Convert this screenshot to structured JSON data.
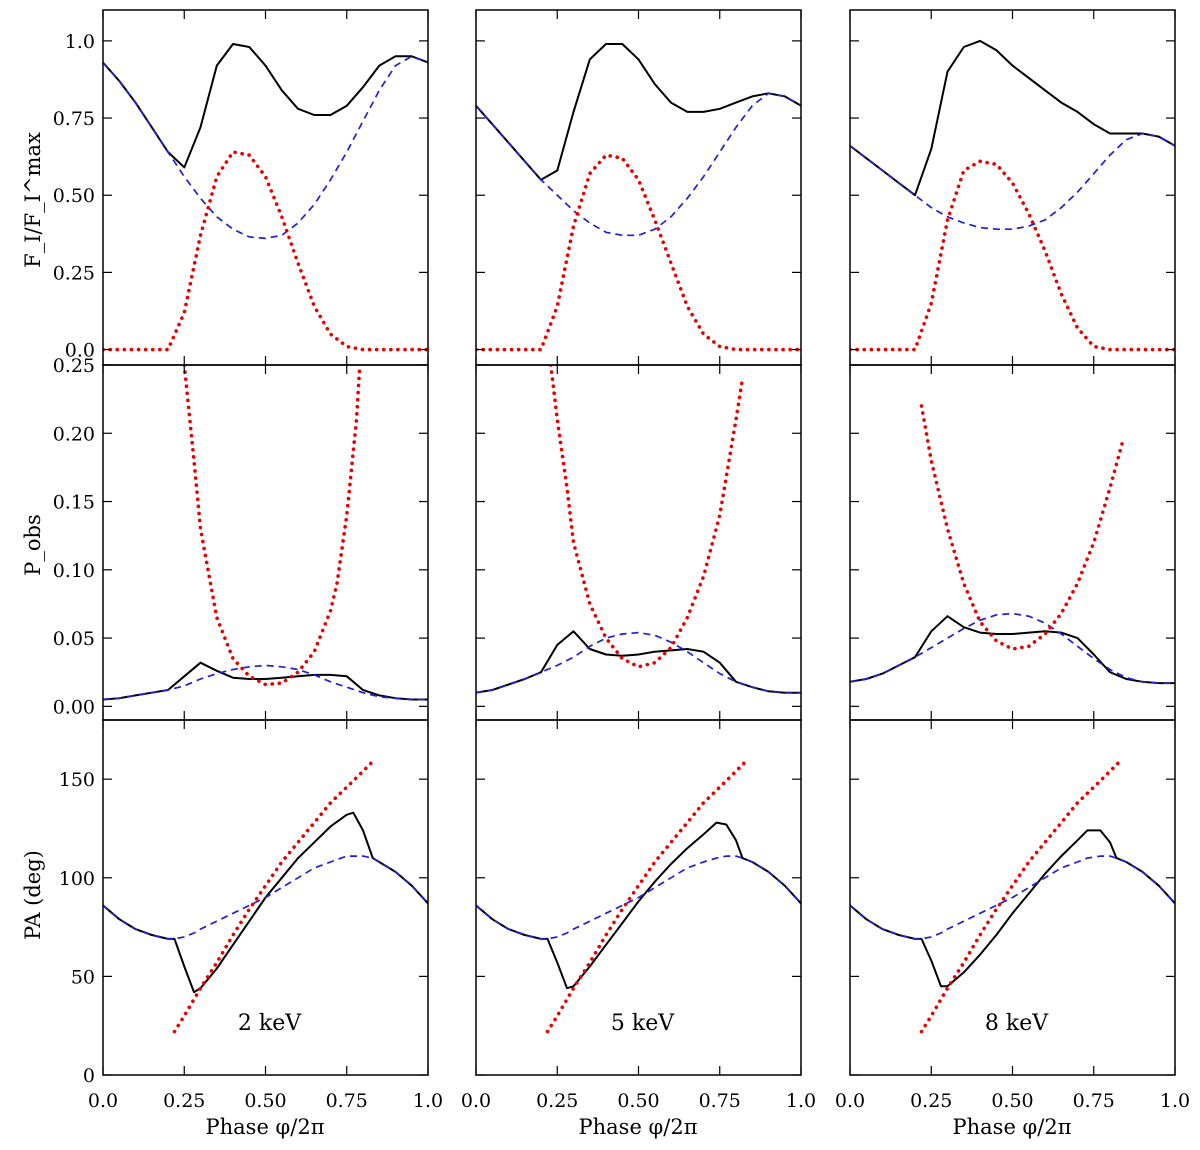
{
  "figure": {
    "x_axis_label": "Phase φ/2π",
    "row_labels": {
      "flux": "F_I/F_I^max",
      "pol": "P_obs",
      "pa": "PA (deg)"
    },
    "x_tick_labels": [
      "0.0",
      "0.25",
      "0.50",
      "0.75",
      "1.0"
    ]
  },
  "colors": {
    "total": "#000000",
    "dashed": "#1f1fd6",
    "dotted": "#e60000"
  },
  "chart_data": [
    {
      "type": "line",
      "panel": "flux-2keV",
      "xlim": [
        0,
        1
      ],
      "ylim": [
        -0.05,
        1.1
      ],
      "yticks": [
        "0.0",
        "0.25",
        "0.50",
        "0.75",
        "1.0"
      ],
      "x": [
        0.0,
        0.05,
        0.1,
        0.15,
        0.2,
        0.25,
        0.3,
        0.35,
        0.4,
        0.45,
        0.5,
        0.55,
        0.6,
        0.65,
        0.7,
        0.75,
        0.8,
        0.85,
        0.9,
        0.95,
        1.0
      ],
      "series": [
        {
          "style": "solid",
          "values": [
            0.93,
            0.87,
            0.8,
            0.72,
            0.64,
            0.59,
            0.72,
            0.92,
            0.99,
            0.98,
            0.92,
            0.84,
            0.78,
            0.76,
            0.76,
            0.79,
            0.85,
            0.92,
            0.95,
            0.95,
            0.93
          ]
        },
        {
          "style": "dashed",
          "values": [
            0.93,
            0.87,
            0.8,
            0.72,
            0.64,
            0.56,
            0.49,
            0.43,
            0.39,
            0.365,
            0.36,
            0.37,
            0.41,
            0.47,
            0.55,
            0.64,
            0.74,
            0.84,
            0.92,
            0.95,
            0.93
          ]
        },
        {
          "style": "dotted",
          "values": [
            0.0,
            0.0,
            0.0,
            0.0,
            0.0,
            0.12,
            0.37,
            0.56,
            0.64,
            0.63,
            0.56,
            0.43,
            0.28,
            0.14,
            0.05,
            0.01,
            0.0,
            0.0,
            0.0,
            0.0,
            0.0
          ]
        }
      ]
    },
    {
      "type": "line",
      "panel": "flux-5keV",
      "xlim": [
        0,
        1
      ],
      "ylim": [
        -0.05,
        1.1
      ],
      "x": [
        0.0,
        0.05,
        0.1,
        0.15,
        0.2,
        0.25,
        0.3,
        0.35,
        0.4,
        0.45,
        0.5,
        0.55,
        0.6,
        0.65,
        0.7,
        0.75,
        0.8,
        0.85,
        0.9,
        0.95,
        1.0
      ],
      "series": [
        {
          "style": "solid",
          "values": [
            0.79,
            0.73,
            0.67,
            0.61,
            0.55,
            0.58,
            0.77,
            0.94,
            0.99,
            0.99,
            0.94,
            0.86,
            0.8,
            0.77,
            0.77,
            0.78,
            0.8,
            0.82,
            0.83,
            0.82,
            0.79
          ]
        },
        {
          "style": "dashed",
          "values": [
            0.79,
            0.73,
            0.67,
            0.61,
            0.55,
            0.5,
            0.45,
            0.41,
            0.38,
            0.37,
            0.37,
            0.39,
            0.43,
            0.49,
            0.56,
            0.64,
            0.72,
            0.79,
            0.83,
            0.82,
            0.79
          ]
        },
        {
          "style": "dotted",
          "values": [
            0.0,
            0.0,
            0.0,
            0.0,
            0.0,
            0.14,
            0.4,
            0.57,
            0.63,
            0.62,
            0.55,
            0.42,
            0.28,
            0.14,
            0.05,
            0.01,
            0.0,
            0.0,
            0.0,
            0.0,
            0.0
          ]
        }
      ]
    },
    {
      "type": "line",
      "panel": "flux-8keV",
      "xlim": [
        0,
        1
      ],
      "ylim": [
        -0.05,
        1.1
      ],
      "x": [
        0.0,
        0.05,
        0.1,
        0.15,
        0.2,
        0.25,
        0.3,
        0.35,
        0.4,
        0.45,
        0.5,
        0.55,
        0.6,
        0.65,
        0.7,
        0.75,
        0.8,
        0.85,
        0.9,
        0.95,
        1.0
      ],
      "series": [
        {
          "style": "solid",
          "values": [
            0.66,
            0.62,
            0.58,
            0.54,
            0.5,
            0.65,
            0.9,
            0.98,
            1.0,
            0.97,
            0.92,
            0.88,
            0.84,
            0.8,
            0.77,
            0.73,
            0.7,
            0.7,
            0.7,
            0.69,
            0.66
          ]
        },
        {
          "style": "dashed",
          "values": [
            0.66,
            0.62,
            0.58,
            0.54,
            0.5,
            0.46,
            0.43,
            0.41,
            0.395,
            0.39,
            0.39,
            0.4,
            0.42,
            0.46,
            0.51,
            0.57,
            0.63,
            0.68,
            0.7,
            0.69,
            0.66
          ]
        },
        {
          "style": "dotted",
          "values": [
            0.0,
            0.0,
            0.0,
            0.0,
            0.0,
            0.15,
            0.42,
            0.58,
            0.61,
            0.6,
            0.54,
            0.44,
            0.32,
            0.18,
            0.07,
            0.01,
            0.0,
            0.0,
            0.0,
            0.0,
            0.0
          ]
        }
      ]
    },
    {
      "type": "line",
      "panel": "pol-2keV",
      "xlim": [
        0,
        1
      ],
      "ylim": [
        -0.01,
        0.25
      ],
      "yticks": [
        "0.00",
        "0.05",
        "0.10",
        "0.15",
        "0.20",
        "0.25"
      ],
      "x": [
        0.0,
        0.05,
        0.1,
        0.15,
        0.2,
        0.25,
        0.3,
        0.35,
        0.4,
        0.45,
        0.5,
        0.55,
        0.6,
        0.65,
        0.7,
        0.75,
        0.8,
        0.85,
        0.9,
        0.95,
        1.0
      ],
      "series": [
        {
          "style": "solid",
          "values": [
            0.005,
            0.006,
            0.008,
            0.01,
            0.012,
            0.022,
            0.032,
            0.026,
            0.021,
            0.02,
            0.02,
            0.021,
            0.022,
            0.023,
            0.023,
            0.022,
            0.012,
            0.008,
            0.006,
            0.005,
            0.005
          ]
        },
        {
          "style": "dashed",
          "values": [
            0.005,
            0.006,
            0.008,
            0.01,
            0.012,
            0.015,
            0.02,
            0.024,
            0.027,
            0.029,
            0.03,
            0.029,
            0.027,
            0.023,
            0.018,
            0.014,
            0.01,
            0.007,
            0.006,
            0.005,
            0.005
          ]
        },
        {
          "style": "dotted",
          "x": [
            0.25,
            0.28,
            0.3,
            0.35,
            0.4,
            0.45,
            0.5,
            0.55,
            0.6,
            0.65,
            0.7,
            0.72,
            0.75,
            0.78,
            0.79
          ],
          "values": [
            0.25,
            0.18,
            0.13,
            0.065,
            0.035,
            0.022,
            0.016,
            0.017,
            0.025,
            0.04,
            0.07,
            0.09,
            0.14,
            0.21,
            0.25
          ]
        }
      ]
    },
    {
      "type": "line",
      "panel": "pol-5keV",
      "xlim": [
        0,
        1
      ],
      "ylim": [
        -0.01,
        0.25
      ],
      "x": [
        0.0,
        0.05,
        0.1,
        0.15,
        0.2,
        0.25,
        0.3,
        0.35,
        0.4,
        0.45,
        0.5,
        0.55,
        0.6,
        0.65,
        0.7,
        0.75,
        0.8,
        0.85,
        0.9,
        0.95,
        1.0
      ],
      "series": [
        {
          "style": "solid",
          "values": [
            0.01,
            0.012,
            0.016,
            0.02,
            0.025,
            0.045,
            0.055,
            0.042,
            0.038,
            0.037,
            0.038,
            0.04,
            0.041,
            0.042,
            0.04,
            0.032,
            0.018,
            0.014,
            0.011,
            0.01,
            0.01
          ]
        },
        {
          "style": "dashed",
          "values": [
            0.01,
            0.012,
            0.016,
            0.02,
            0.025,
            0.03,
            0.036,
            0.044,
            0.05,
            0.053,
            0.054,
            0.052,
            0.047,
            0.04,
            0.032,
            0.024,
            0.018,
            0.014,
            0.011,
            0.01,
            0.01
          ]
        },
        {
          "style": "dotted",
          "x": [
            0.23,
            0.25,
            0.28,
            0.3,
            0.35,
            0.4,
            0.45,
            0.5,
            0.55,
            0.6,
            0.65,
            0.7,
            0.75,
            0.8,
            0.82
          ],
          "values": [
            0.25,
            0.21,
            0.16,
            0.12,
            0.075,
            0.05,
            0.035,
            0.029,
            0.032,
            0.043,
            0.065,
            0.095,
            0.14,
            0.21,
            0.24
          ]
        }
      ]
    },
    {
      "type": "line",
      "panel": "pol-8keV",
      "xlim": [
        0,
        1
      ],
      "ylim": [
        -0.01,
        0.25
      ],
      "x": [
        0.0,
        0.05,
        0.1,
        0.15,
        0.2,
        0.25,
        0.3,
        0.35,
        0.4,
        0.45,
        0.5,
        0.55,
        0.6,
        0.65,
        0.7,
        0.75,
        0.8,
        0.85,
        0.9,
        0.95,
        1.0
      ],
      "series": [
        {
          "style": "solid",
          "values": [
            0.018,
            0.02,
            0.024,
            0.03,
            0.036,
            0.055,
            0.066,
            0.058,
            0.054,
            0.053,
            0.053,
            0.054,
            0.055,
            0.054,
            0.05,
            0.038,
            0.025,
            0.02,
            0.018,
            0.017,
            0.017
          ]
        },
        {
          "style": "dashed",
          "values": [
            0.018,
            0.02,
            0.024,
            0.03,
            0.036,
            0.043,
            0.05,
            0.057,
            0.063,
            0.067,
            0.068,
            0.066,
            0.061,
            0.053,
            0.044,
            0.035,
            0.027,
            0.021,
            0.018,
            0.017,
            0.017
          ]
        },
        {
          "style": "dotted",
          "x": [
            0.22,
            0.25,
            0.3,
            0.35,
            0.4,
            0.45,
            0.5,
            0.55,
            0.6,
            0.65,
            0.7,
            0.75,
            0.8,
            0.84
          ],
          "values": [
            0.22,
            0.18,
            0.13,
            0.09,
            0.062,
            0.048,
            0.042,
            0.044,
            0.053,
            0.068,
            0.09,
            0.12,
            0.16,
            0.195
          ]
        }
      ]
    },
    {
      "type": "line",
      "panel": "pa-2keV",
      "xlim": [
        0,
        1
      ],
      "ylim": [
        0,
        180
      ],
      "yticks": [
        "0",
        "50",
        "100",
        "150"
      ],
      "annotation": "2 keV",
      "x": [
        0.0,
        0.05,
        0.1,
        0.15,
        0.2,
        0.22,
        0.25,
        0.28,
        0.3,
        0.35,
        0.4,
        0.45,
        0.5,
        0.55,
        0.6,
        0.65,
        0.7,
        0.75,
        0.77,
        0.8,
        0.83,
        0.85,
        0.9,
        0.95,
        1.0
      ],
      "series": [
        {
          "style": "solid",
          "values": [
            86,
            79,
            74,
            71,
            69,
            69,
            55,
            42,
            44,
            54,
            66,
            78,
            90,
            100,
            110,
            118,
            126,
            132,
            133,
            124,
            110,
            108,
            103,
            96,
            87
          ]
        },
        {
          "style": "dashed",
          "values": [
            86,
            79,
            74,
            71,
            69,
            69,
            70,
            72,
            74,
            78,
            82,
            86,
            90,
            95,
            100,
            105,
            108,
            111,
            111,
            111,
            110,
            108,
            103,
            96,
            87
          ]
        },
        {
          "style": "dotted",
          "x": [
            0.22,
            0.25,
            0.3,
            0.35,
            0.4,
            0.45,
            0.5,
            0.55,
            0.6,
            0.65,
            0.7,
            0.75,
            0.8,
            0.83
          ],
          "values": [
            22,
            30,
            44,
            57,
            71,
            84,
            96,
            108,
            118,
            128,
            138,
            146,
            154,
            159
          ]
        }
      ]
    },
    {
      "type": "line",
      "panel": "pa-5keV",
      "xlim": [
        0,
        1
      ],
      "ylim": [
        0,
        180
      ],
      "annotation": "5 keV",
      "x": [
        0.0,
        0.05,
        0.1,
        0.15,
        0.2,
        0.22,
        0.25,
        0.28,
        0.3,
        0.35,
        0.4,
        0.45,
        0.5,
        0.55,
        0.6,
        0.65,
        0.7,
        0.74,
        0.77,
        0.8,
        0.82,
        0.85,
        0.9,
        0.95,
        1.0
      ],
      "series": [
        {
          "style": "solid",
          "values": [
            86,
            79,
            74,
            71,
            69,
            69,
            57,
            44,
            45,
            55,
            66,
            77,
            88,
            98,
            107,
            115,
            122,
            128,
            127,
            119,
            110,
            108,
            103,
            96,
            87
          ]
        },
        {
          "style": "dashed",
          "values": [
            86,
            79,
            74,
            71,
            69,
            69,
            70,
            72,
            74,
            78,
            82,
            86,
            90,
            95,
            100,
            105,
            108,
            110,
            111,
            111,
            110,
            108,
            103,
            96,
            87
          ]
        },
        {
          "style": "dotted",
          "x": [
            0.22,
            0.25,
            0.3,
            0.35,
            0.4,
            0.45,
            0.5,
            0.55,
            0.6,
            0.65,
            0.7,
            0.75,
            0.8,
            0.83
          ],
          "values": [
            22,
            30,
            44,
            57,
            71,
            84,
            96,
            108,
            118,
            128,
            138,
            146,
            154,
            159
          ]
        }
      ]
    },
    {
      "type": "line",
      "panel": "pa-8keV",
      "xlim": [
        0,
        1
      ],
      "ylim": [
        0,
        180
      ],
      "annotation": "8 keV",
      "x": [
        0.0,
        0.05,
        0.1,
        0.15,
        0.2,
        0.22,
        0.25,
        0.28,
        0.3,
        0.35,
        0.4,
        0.45,
        0.5,
        0.55,
        0.6,
        0.65,
        0.7,
        0.73,
        0.77,
        0.8,
        0.82,
        0.85,
        0.9,
        0.95,
        1.0
      ],
      "series": [
        {
          "style": "solid",
          "values": [
            86,
            79,
            74,
            71,
            69,
            69,
            58,
            45,
            45,
            52,
            61,
            71,
            82,
            92,
            102,
            111,
            119,
            124,
            124,
            118,
            110,
            108,
            103,
            96,
            87
          ]
        },
        {
          "style": "dashed",
          "values": [
            86,
            79,
            74,
            71,
            69,
            69,
            70,
            72,
            74,
            78,
            82,
            86,
            90,
            95,
            100,
            105,
            108,
            110,
            111,
            111,
            110,
            108,
            103,
            96,
            87
          ]
        },
        {
          "style": "dotted",
          "x": [
            0.22,
            0.25,
            0.3,
            0.35,
            0.4,
            0.45,
            0.5,
            0.55,
            0.6,
            0.65,
            0.7,
            0.75,
            0.8,
            0.83
          ],
          "values": [
            22,
            30,
            44,
            57,
            71,
            84,
            96,
            108,
            118,
            128,
            138,
            146,
            154,
            159
          ]
        }
      ]
    }
  ]
}
